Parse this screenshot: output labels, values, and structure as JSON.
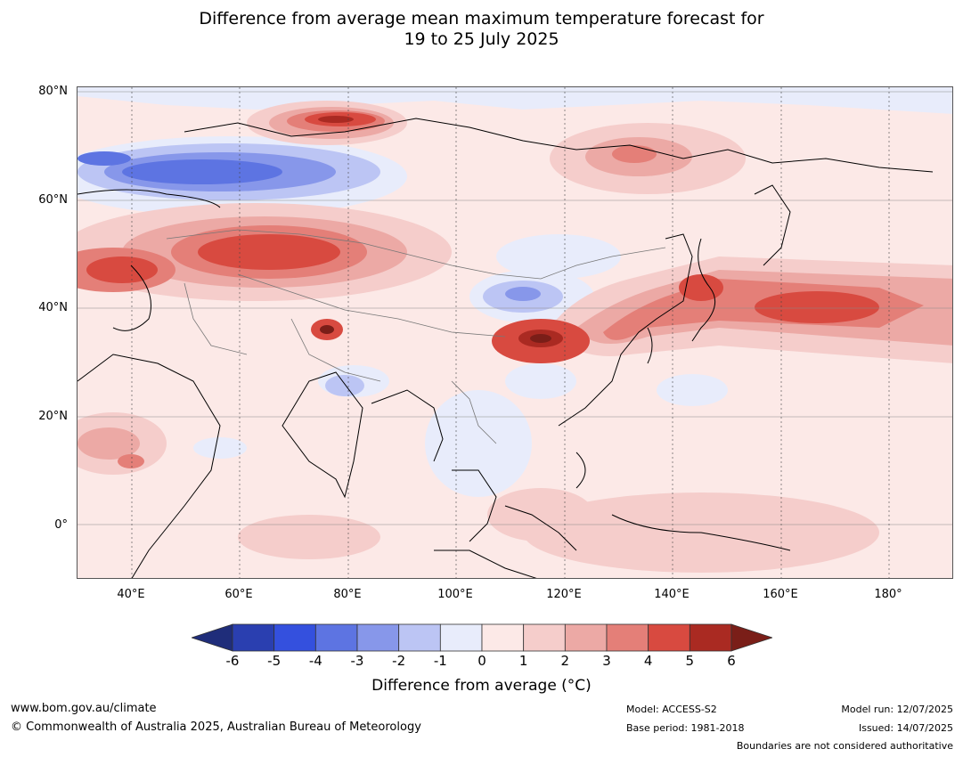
{
  "title_line1": "Difference from average mean maximum temperature forecast for",
  "title_line2": "19 to 25 July 2025",
  "map": {
    "lat_labels": [
      "80°N",
      "60°N",
      "40°N",
      "20°N",
      "0°"
    ],
    "lon_labels": [
      "40°E",
      "60°E",
      "80°E",
      "100°E",
      "120°E",
      "140°E",
      "160°E",
      "180°"
    ]
  },
  "colorbar": {
    "label": "Difference from average (°C)",
    "ticks": [
      "-6",
      "-5",
      "-4",
      "-3",
      "-2",
      "-1",
      "0",
      "1",
      "2",
      "3",
      "4",
      "5",
      "6"
    ],
    "colors": [
      "#1f2d7a",
      "#2a3fb0",
      "#3450de",
      "#5d74e2",
      "#8797ea",
      "#bcc5f4",
      "#e8ecfb",
      "#fce9e7",
      "#f5cdcb",
      "#eca9a5",
      "#e47f78",
      "#d84a40",
      "#aa2a22",
      "#7a1e18"
    ]
  },
  "footer": {
    "website": "www.bom.gov.au/climate",
    "copyright": "© Commonwealth of Australia 2025, Australian Bureau of Meteorology",
    "model": "Model: ACCESS-S2",
    "base_period": "Base period: 1981-2018",
    "model_run": "Model run: 12/07/2025",
    "issued": "Issued: 14/07/2025",
    "disclaimer": "Boundaries are not considered authoritative"
  }
}
